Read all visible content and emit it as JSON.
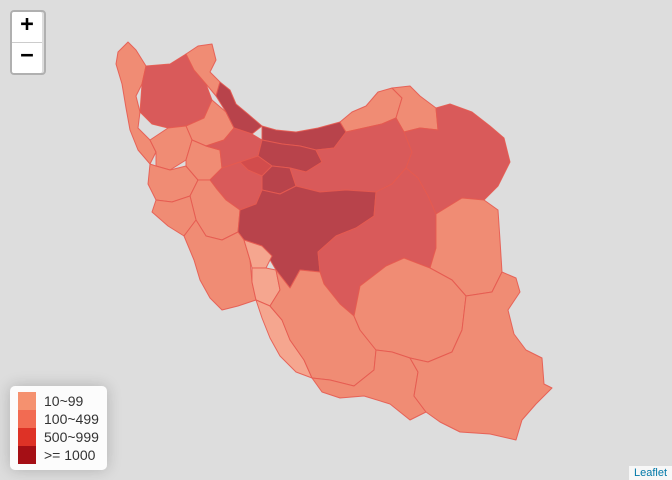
{
  "zoom_controls": {
    "zoom_in_label": "+",
    "zoom_out_label": "−"
  },
  "legend": {
    "items": [
      {
        "label": "10~99",
        "color": "#f5916f"
      },
      {
        "label": "100~499",
        "color": "#f26b52"
      },
      {
        "label": "500~999",
        "color": "#de3226"
      },
      {
        "label": ">= 1000",
        "color": "#a50f15"
      }
    ]
  },
  "attribution": {
    "label": "Leaflet"
  },
  "colors": {
    "background": "#dddddd",
    "class_10_99": "#f28f72",
    "class_100_499": "#e06060",
    "class_500_999": "#d24c4c",
    "class_1000_plus": "#b8434b",
    "light_province": "#f5a68f"
  }
}
